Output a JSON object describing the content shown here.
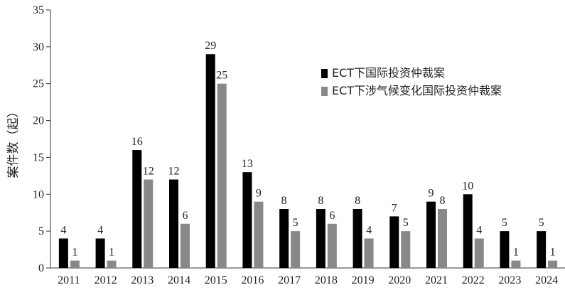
{
  "chart_data": {
    "type": "bar",
    "title": "",
    "xlabel": "",
    "ylabel": "案件数（起）",
    "ylim": [
      0,
      35
    ],
    "yticks": [
      0,
      5,
      10,
      15,
      20,
      25,
      30,
      35
    ],
    "grid": false,
    "legend_position": "top-right",
    "categories": [
      "2011",
      "2012",
      "2013",
      "2014",
      "2015",
      "2016",
      "2017",
      "2018",
      "2019",
      "2020",
      "2021",
      "2022",
      "2023",
      "2024"
    ],
    "series": [
      {
        "name": "ECT下国际投资仲裁案",
        "color": "#000000",
        "values": [
          4,
          4,
          16,
          12,
          29,
          13,
          8,
          8,
          8,
          7,
          9,
          10,
          5,
          5
        ]
      },
      {
        "name": "ECT下涉气候变化国际投资仲裁案",
        "color": "#888888",
        "values": [
          1,
          1,
          12,
          6,
          25,
          9,
          5,
          6,
          4,
          5,
          8,
          4,
          1,
          1
        ]
      }
    ]
  }
}
